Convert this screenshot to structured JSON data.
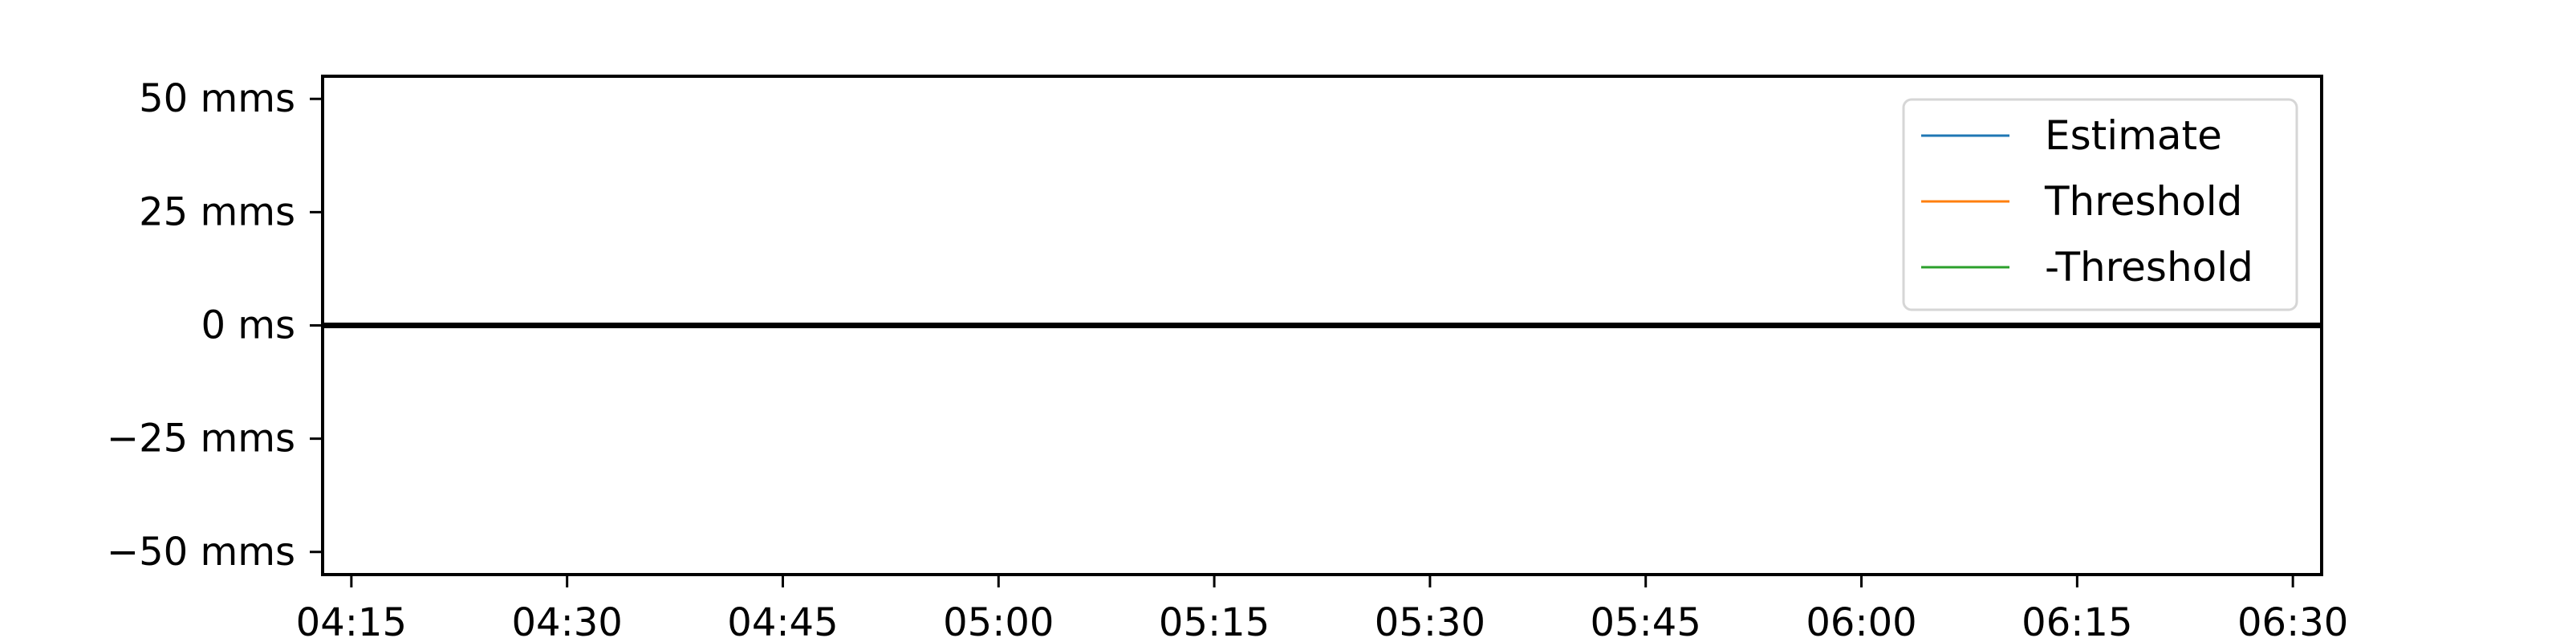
{
  "chart_data": {
    "type": "line",
    "title": "",
    "xlabel": "",
    "ylabel": "",
    "xlim": [
      "04:13",
      "06:32"
    ],
    "ylim": [
      -55,
      55
    ],
    "grid": false,
    "legend_placement": "top-right",
    "x_ticks": [
      {
        "t": "04:15",
        "label": "04:15"
      },
      {
        "t": "04:30",
        "label": "04:30"
      },
      {
        "t": "04:45",
        "label": "04:45"
      },
      {
        "t": "05:00",
        "label": "05:00"
      },
      {
        "t": "05:15",
        "label": "05:15"
      },
      {
        "t": "05:30",
        "label": "05:30"
      },
      {
        "t": "05:45",
        "label": "05:45"
      },
      {
        "t": "06:00",
        "label": "06:00"
      },
      {
        "t": "06:15",
        "label": "06:15"
      },
      {
        "t": "06:30",
        "label": "06:30"
      }
    ],
    "y_ticks": [
      {
        "v": 50,
        "label": "50 mms"
      },
      {
        "v": 25,
        "label": "25 mms"
      },
      {
        "v": 0,
        "label": "0 ms"
      },
      {
        "v": -25,
        "label": "−25 mms"
      },
      {
        "v": -50,
        "label": "−50 mms"
      }
    ],
    "series": [
      {
        "name": "Estimate",
        "color": "#1f77b4",
        "x": [],
        "y": []
      },
      {
        "name": "Threshold",
        "color": "#ff7f0e",
        "x": [],
        "y": []
      },
      {
        "name": "-Threshold",
        "color": "#2ca02c",
        "x": [],
        "y": []
      }
    ],
    "reference_line": {
      "y": 0,
      "color": "#000000"
    }
  }
}
